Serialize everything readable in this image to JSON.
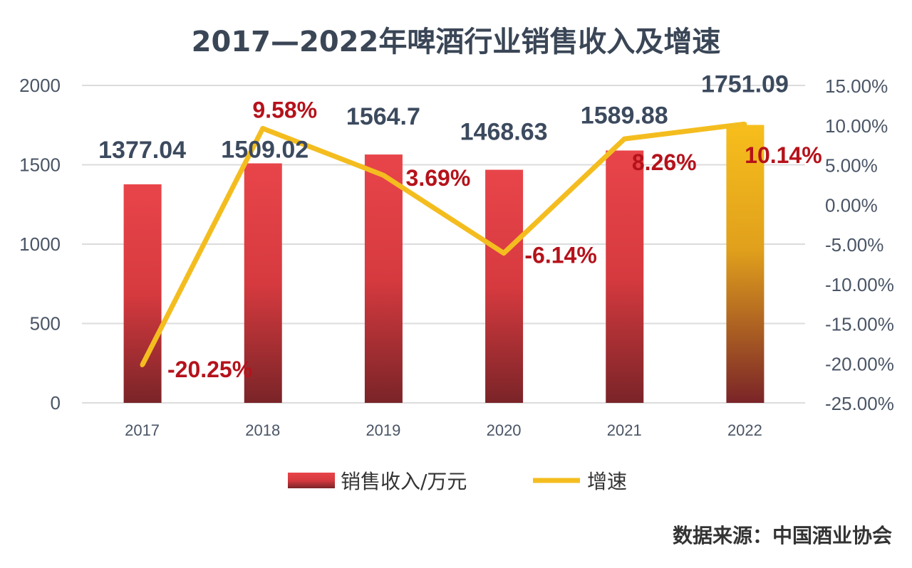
{
  "chart_data": {
    "type": "bar+line",
    "title": "2017—2022年啤酒行业销售收入及增速",
    "categories": [
      "2017",
      "2018",
      "2019",
      "2020",
      "2021",
      "2022"
    ],
    "series": [
      {
        "name": "销售收入/万元",
        "type": "bar",
        "axis": "left",
        "values": [
          1377.04,
          1509.02,
          1564.7,
          1468.63,
          1589.88,
          1751.09
        ],
        "labels": [
          "1377.04",
          "1509.02",
          "1564.7",
          "1468.63",
          "1589.88",
          "1751.09"
        ]
      },
      {
        "name": "增速",
        "type": "line",
        "axis": "right",
        "values": [
          -20.25,
          9.58,
          3.69,
          -6.14,
          8.26,
          10.14
        ],
        "labels": [
          "-20.25%",
          "9.58%",
          "3.69%",
          "-6.14%",
          "8.26%",
          "10.14%"
        ]
      }
    ],
    "left_axis": {
      "range": [
        0,
        2000
      ],
      "ticks": [
        "0",
        "500",
        "1000",
        "1500",
        "2000"
      ]
    },
    "right_axis": {
      "range": [
        -25,
        15
      ],
      "ticks": [
        "-25.00%",
        "-20.00%",
        "-15.00%",
        "-10.00%",
        "-5.00%",
        "0.00%",
        "5.00%",
        "10.00%",
        "15.00%"
      ]
    },
    "grid": true,
    "legend": "bottom",
    "colors": {
      "bar_top": "#e8454a",
      "bar_bottom": "#7a2428",
      "highlight_bar_top": "#f7be1c",
      "highlight_bar_bottom": "#7a2428",
      "line": "#f4bd1f",
      "pct_label": "#b5121b",
      "value_label": "#3c4a5e"
    }
  },
  "source": "数据来源：中国酒业协会"
}
